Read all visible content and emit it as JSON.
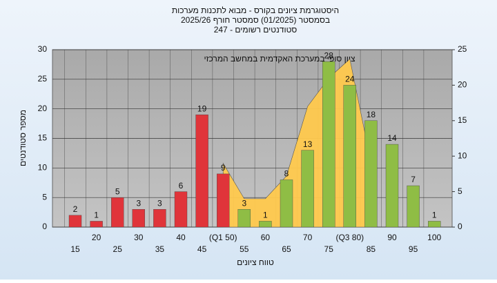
{
  "chart_data": {
    "type": "bar",
    "title": "היסטוגרמת ציונים בקורס - מבוא לתכנות מערכות",
    "subtitle": "בסמסטר  (01/2025)  סמסטר חורף 2025/26",
    "subtitle2": "סטודנטים רשומים - 247",
    "annotation": "ציון סופי במערכת האקדמית במחשב המרכזי",
    "ylabel": "מספר סטודנטים",
    "xlabel": "טווח ציונים",
    "categories": [
      "15",
      "20",
      "25",
      "30",
      "35",
      "40",
      "45",
      "(Q1 50)",
      "55",
      "60",
      "65",
      "70",
      "75",
      "(Q3 80)",
      "85",
      "90",
      "95",
      "100"
    ],
    "values": [
      2,
      1,
      5,
      3,
      3,
      6,
      19,
      9,
      3,
      1,
      8,
      13,
      28,
      24,
      18,
      14,
      7,
      1
    ],
    "colors": [
      "#e0343a",
      "#e0343a",
      "#e0343a",
      "#e0343a",
      "#e0343a",
      "#e0343a",
      "#e0343a",
      "#e0343a",
      "#8fbd45",
      "#8fbd45",
      "#8fbd45",
      "#8fbd45",
      "#8fbd45",
      "#8fbd45",
      "#8fbd45",
      "#8fbd45",
      "#8fbd45",
      "#8fbd45"
    ],
    "area": {
      "axis": "y2",
      "color": "#ffc94d",
      "values": [
        null,
        null,
        null,
        null,
        null,
        null,
        null,
        9,
        4,
        4,
        7.2,
        17,
        21,
        23.7,
        9.1,
        null,
        null,
        null
      ]
    },
    "ylim": [
      0,
      30
    ],
    "yticks": [
      0,
      5,
      10,
      15,
      20,
      25,
      30
    ],
    "y2lim": [
      0,
      25
    ],
    "y2ticks": [
      0,
      5,
      10,
      15,
      20,
      25
    ],
    "grid": true
  }
}
